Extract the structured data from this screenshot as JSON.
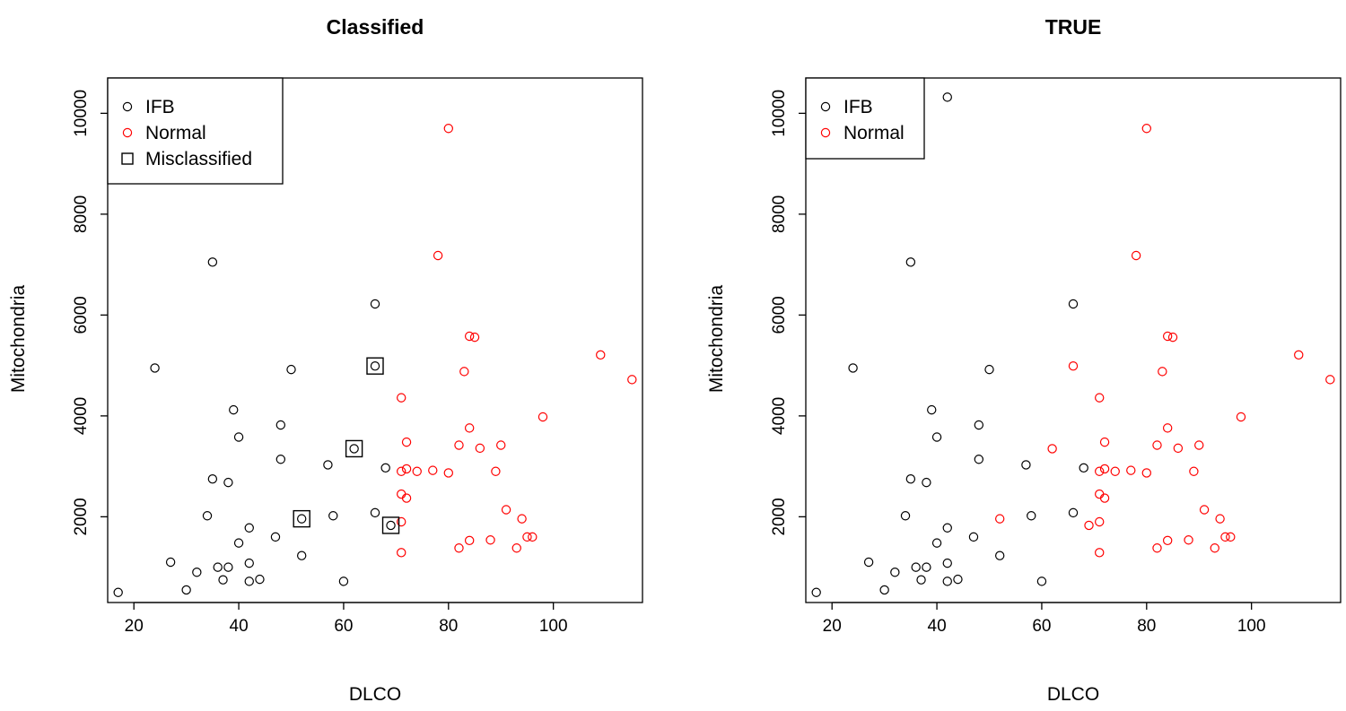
{
  "chart_data": [
    {
      "type": "scatter",
      "title": "Classified",
      "xlabel": "DLCO",
      "ylabel": "Mitochondria",
      "xlim": [
        15,
        117
      ],
      "ylim": [
        300,
        10700
      ],
      "xticks": [
        20,
        40,
        60,
        80,
        100
      ],
      "yticks": [
        2000,
        4000,
        6000,
        8000,
        10000
      ],
      "grid": false,
      "legend_position": "top-left",
      "colors": {
        "IFB": "#000000",
        "Normal": "#ff0000",
        "Misclassified": "#000000"
      },
      "legend": [
        {
          "label": "IFB",
          "marker": "circle",
          "color": "#000000"
        },
        {
          "label": "Normal",
          "marker": "circle",
          "color": "#ff0000"
        },
        {
          "label": "Misclassified",
          "marker": "square",
          "color": "#000000"
        }
      ],
      "series": [
        {
          "name": "IFB",
          "marker": "circle",
          "color": "#000000",
          "points": [
            [
              17,
              500
            ],
            [
              24,
              4950
            ],
            [
              27,
              1100
            ],
            [
              30,
              550
            ],
            [
              32,
              900
            ],
            [
              34,
              2020
            ],
            [
              35,
              7050
            ],
            [
              35,
              2750
            ],
            [
              36,
              1000
            ],
            [
              37,
              750
            ],
            [
              38,
              1000
            ],
            [
              38,
              2680
            ],
            [
              39,
              4120
            ],
            [
              40,
              3580
            ],
            [
              40,
              1480
            ],
            [
              42,
              1780
            ],
            [
              42,
              1080
            ],
            [
              42,
              720
            ],
            [
              44,
              760
            ],
            [
              47,
              1600
            ],
            [
              48,
              3820
            ],
            [
              48,
              3140
            ],
            [
              50,
              4920
            ],
            [
              52,
              1230
            ],
            [
              57,
              3030
            ],
            [
              58,
              2020
            ],
            [
              60,
              720
            ],
            [
              66,
              6220
            ],
            [
              66,
              2080
            ],
            [
              68,
              2970
            ]
          ]
        },
        {
          "name": "Normal",
          "marker": "circle",
          "color": "#ff0000",
          "points": [
            [
              71,
              4360
            ],
            [
              71,
              2900
            ],
            [
              71,
              2450
            ],
            [
              71,
              1900
            ],
            [
              71,
              1290
            ],
            [
              72,
              2370
            ],
            [
              72,
              3480
            ],
            [
              72,
              2950
            ],
            [
              74,
              2900
            ],
            [
              77,
              2920
            ],
            [
              78,
              7180
            ],
            [
              80,
              9700
            ],
            [
              80,
              2870
            ],
            [
              82,
              3420
            ],
            [
              82,
              1380
            ],
            [
              83,
              4880
            ],
            [
              84,
              5580
            ],
            [
              84,
              3760
            ],
            [
              84,
              1530
            ],
            [
              85,
              5560
            ],
            [
              86,
              3360
            ],
            [
              88,
              1540
            ],
            [
              89,
              2900
            ],
            [
              90,
              3420
            ],
            [
              91,
              2140
            ],
            [
              93,
              1380
            ],
            [
              94,
              1960
            ],
            [
              95,
              1600
            ],
            [
              96,
              1600
            ],
            [
              98,
              3980
            ],
            [
              109,
              5210
            ],
            [
              115,
              4720
            ]
          ]
        },
        {
          "name": "Misclassified",
          "marker": "square",
          "color": "#000000",
          "points": [
            [
              52,
              1960
            ],
            [
              62,
              3350
            ],
            [
              66,
              4990
            ],
            [
              69,
              1830
            ]
          ]
        }
      ]
    },
    {
      "type": "scatter",
      "title": "TRUE",
      "xlabel": "DLCO",
      "ylabel": "Mitochondria",
      "xlim": [
        15,
        117
      ],
      "ylim": [
        300,
        10700
      ],
      "xticks": [
        20,
        40,
        60,
        80,
        100
      ],
      "yticks": [
        2000,
        4000,
        6000,
        8000,
        10000
      ],
      "grid": false,
      "legend_position": "top-left",
      "colors": {
        "IFB": "#000000",
        "Normal": "#ff0000"
      },
      "legend": [
        {
          "label": "IFB",
          "marker": "circle",
          "color": "#000000"
        },
        {
          "label": "Normal",
          "marker": "circle",
          "color": "#ff0000"
        }
      ],
      "series": [
        {
          "name": "IFB",
          "marker": "circle",
          "color": "#000000",
          "points": [
            [
              17,
              500
            ],
            [
              24,
              4950
            ],
            [
              27,
              1100
            ],
            [
              30,
              550
            ],
            [
              32,
              900
            ],
            [
              34,
              2020
            ],
            [
              35,
              7050
            ],
            [
              35,
              2750
            ],
            [
              36,
              1000
            ],
            [
              37,
              750
            ],
            [
              38,
              1000
            ],
            [
              38,
              2680
            ],
            [
              39,
              4120
            ],
            [
              40,
              3580
            ],
            [
              40,
              1480
            ],
            [
              42,
              10320
            ],
            [
              42,
              1780
            ],
            [
              42,
              1080
            ],
            [
              42,
              720
            ],
            [
              44,
              760
            ],
            [
              47,
              1600
            ],
            [
              48,
              3820
            ],
            [
              48,
              3140
            ],
            [
              50,
              4920
            ],
            [
              52,
              1230
            ],
            [
              57,
              3030
            ],
            [
              58,
              2020
            ],
            [
              60,
              720
            ],
            [
              66,
              6220
            ],
            [
              66,
              2080
            ],
            [
              68,
              2970
            ]
          ]
        },
        {
          "name": "Normal",
          "marker": "circle",
          "color": "#ff0000",
          "points": [
            [
              52,
              1960
            ],
            [
              62,
              3350
            ],
            [
              66,
              4990
            ],
            [
              69,
              1830
            ],
            [
              71,
              4360
            ],
            [
              71,
              2900
            ],
            [
              71,
              2450
            ],
            [
              71,
              1900
            ],
            [
              71,
              1290
            ],
            [
              72,
              2370
            ],
            [
              72,
              3480
            ],
            [
              72,
              2950
            ],
            [
              74,
              2900
            ],
            [
              77,
              2920
            ],
            [
              78,
              7180
            ],
            [
              80,
              9700
            ],
            [
              80,
              2870
            ],
            [
              82,
              3420
            ],
            [
              82,
              1380
            ],
            [
              83,
              4880
            ],
            [
              84,
              5580
            ],
            [
              84,
              3760
            ],
            [
              84,
              1530
            ],
            [
              85,
              5560
            ],
            [
              86,
              3360
            ],
            [
              88,
              1540
            ],
            [
              89,
              2900
            ],
            [
              90,
              3420
            ],
            [
              91,
              2140
            ],
            [
              93,
              1380
            ],
            [
              94,
              1960
            ],
            [
              95,
              1600
            ],
            [
              96,
              1600
            ],
            [
              98,
              3980
            ],
            [
              109,
              5210
            ],
            [
              115,
              4720
            ]
          ]
        }
      ]
    }
  ]
}
